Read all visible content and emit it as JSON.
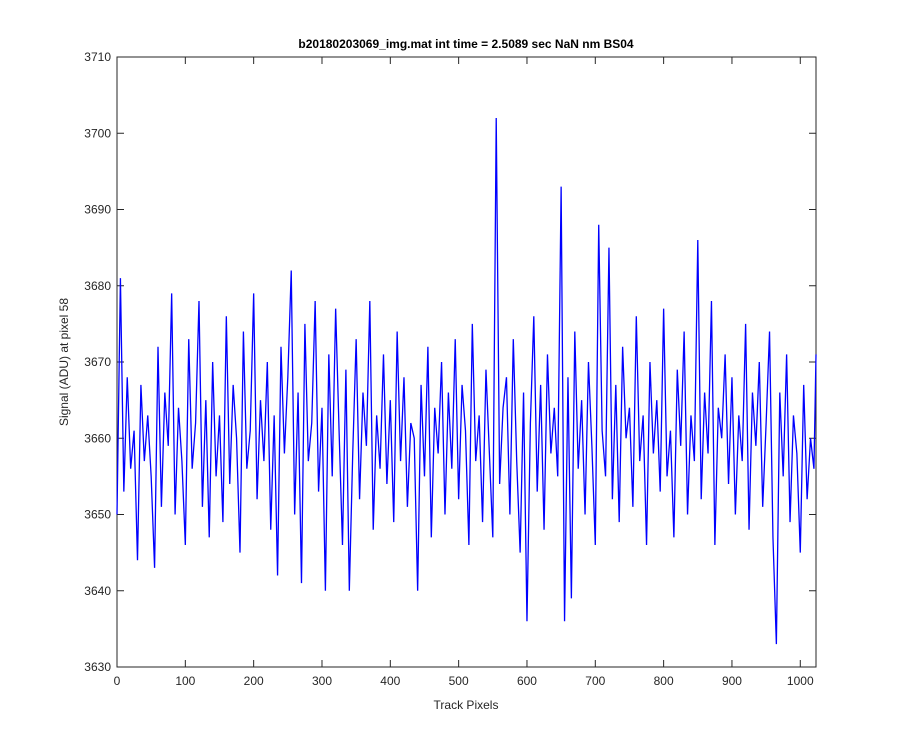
{
  "chart_data": {
    "type": "line",
    "title": "b20180203069_img.mat int time = 2.5089 sec  NaN nm BS04",
    "x_label": "Track Pixels",
    "y_label": "Signal (ADU) at pixel 58",
    "xlim": [
      0,
      1023
    ],
    "ylim": [
      3630,
      3710
    ],
    "xticks": [
      0,
      100,
      200,
      300,
      400,
      500,
      600,
      700,
      800,
      900,
      1000
    ],
    "yticks": [
      3630,
      3640,
      3650,
      3660,
      3670,
      3680,
      3690,
      3700,
      3710
    ],
    "x": [
      0,
      5,
      10,
      15,
      20,
      25,
      30,
      35,
      40,
      45,
      50,
      55,
      60,
      65,
      70,
      75,
      80,
      85,
      90,
      95,
      100,
      105,
      110,
      115,
      120,
      125,
      130,
      135,
      140,
      145,
      150,
      155,
      160,
      165,
      170,
      175,
      180,
      185,
      190,
      195,
      200,
      205,
      210,
      215,
      220,
      225,
      230,
      235,
      240,
      245,
      250,
      255,
      260,
      265,
      270,
      275,
      280,
      285,
      290,
      295,
      300,
      305,
      310,
      315,
      320,
      325,
      330,
      335,
      340,
      345,
      350,
      355,
      360,
      365,
      370,
      375,
      380,
      385,
      390,
      395,
      400,
      405,
      410,
      415,
      420,
      425,
      430,
      435,
      440,
      445,
      450,
      455,
      460,
      465,
      470,
      475,
      480,
      485,
      490,
      495,
      500,
      505,
      510,
      515,
      520,
      525,
      530,
      535,
      540,
      545,
      550,
      555,
      560,
      565,
      570,
      575,
      580,
      585,
      590,
      595,
      600,
      605,
      610,
      615,
      620,
      625,
      630,
      635,
      640,
      645,
      650,
      655,
      660,
      665,
      670,
      675,
      680,
      685,
      690,
      695,
      700,
      705,
      710,
      715,
      720,
      725,
      730,
      735,
      740,
      745,
      750,
      755,
      760,
      765,
      770,
      775,
      780,
      785,
      790,
      795,
      800,
      805,
      810,
      815,
      820,
      825,
      830,
      835,
      840,
      845,
      850,
      855,
      860,
      865,
      870,
      875,
      880,
      885,
      890,
      895,
      900,
      905,
      910,
      915,
      920,
      925,
      930,
      935,
      940,
      945,
      950,
      955,
      960,
      965,
      970,
      975,
      980,
      985,
      990,
      995,
      1000,
      1005,
      1010,
      1015,
      1020,
      1023
    ],
    "series": [
      {
        "name": "signal",
        "color": "#0000ff",
        "values": [
          3650,
          3681,
          3653,
          3668,
          3656,
          3661,
          3644,
          3667,
          3657,
          3663,
          3655,
          3643,
          3672,
          3651,
          3666,
          3659,
          3679,
          3650,
          3664,
          3657,
          3646,
          3673,
          3656,
          3662,
          3678,
          3651,
          3665,
          3647,
          3670,
          3655,
          3663,
          3649,
          3676,
          3654,
          3667,
          3660,
          3645,
          3674,
          3656,
          3661,
          3679,
          3652,
          3665,
          3657,
          3670,
          3648,
          3663,
          3642,
          3672,
          3658,
          3668,
          3682,
          3650,
          3666,
          3641,
          3675,
          3657,
          3662,
          3678,
          3653,
          3664,
          3640,
          3671,
          3655,
          3677,
          3661,
          3646,
          3669,
          3640,
          3658,
          3673,
          3652,
          3666,
          3659,
          3678,
          3648,
          3663,
          3656,
          3671,
          3654,
          3665,
          3649,
          3674,
          3657,
          3668,
          3651,
          3662,
          3660,
          3640,
          3667,
          3655,
          3672,
          3647,
          3664,
          3658,
          3670,
          3650,
          3666,
          3656,
          3673,
          3652,
          3667,
          3661,
          3646,
          3675,
          3657,
          3663,
          3649,
          3669,
          3658,
          3647,
          3702,
          3654,
          3664,
          3668,
          3650,
          3673,
          3657,
          3645,
          3666,
          3636,
          3662,
          3676,
          3653,
          3667,
          3648,
          3671,
          3658,
          3664,
          3655,
          3693,
          3636,
          3668,
          3639,
          3674,
          3656,
          3665,
          3650,
          3670,
          3659,
          3646,
          3688,
          3661,
          3655,
          3685,
          3652,
          3667,
          3649,
          3672,
          3660,
          3664,
          3651,
          3676,
          3657,
          3663,
          3646,
          3670,
          3658,
          3665,
          3653,
          3677,
          3655,
          3661,
          3647,
          3669,
          3659,
          3674,
          3650,
          3663,
          3657,
          3686,
          3652,
          3666,
          3658,
          3678,
          3646,
          3664,
          3660,
          3671,
          3654,
          3668,
          3650,
          3663,
          3657,
          3675,
          3648,
          3666,
          3659,
          3670,
          3651,
          3662,
          3674,
          3647,
          3633,
          3666,
          3655,
          3671,
          3649,
          3663,
          3658,
          3645,
          3667,
          3652,
          3660,
          3656,
          3671
        ]
      }
    ]
  }
}
